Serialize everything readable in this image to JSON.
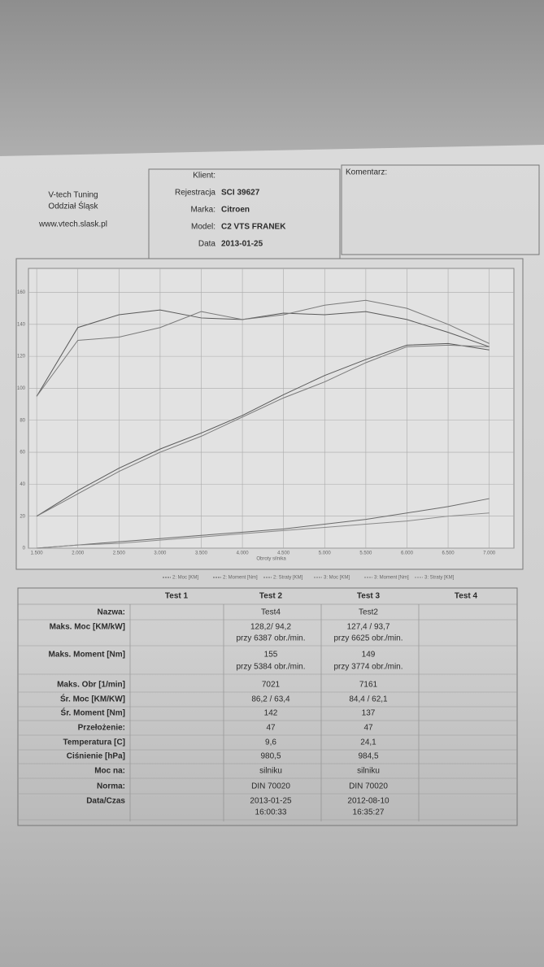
{
  "header": {
    "company": "V-tech Tuning",
    "branch": "Oddział Śląsk",
    "website": "www.vtech.slask.pl"
  },
  "client": [
    {
      "label": "Klient:"
    },
    {
      "label": "Rejestracja",
      "value": "SCI 39627"
    },
    {
      "label": "Marka:",
      "value": "Citroen"
    },
    {
      "label": "Model:",
      "value": "C2 VTS FRANEK"
    },
    {
      "label": "Data",
      "value": "2013-01-25"
    }
  ],
  "comment_label": "Komentarz:",
  "chart": {
    "type": "line",
    "x_label": "Obroty silnika",
    "x": [
      1500,
      2000,
      2500,
      3000,
      3500,
      4000,
      4500,
      5000,
      5500,
      6000,
      6500,
      7000
    ],
    "xlim": [
      1400,
      7300
    ],
    "xticks": [
      {
        "value": 1500,
        "label": "1.500"
      },
      {
        "value": 2000,
        "label": "2.000"
      },
      {
        "value": 2500,
        "label": "2.500"
      },
      {
        "value": 3000,
        "label": "3.000"
      },
      {
        "value": 3500,
        "label": "3.500"
      },
      {
        "value": 4000,
        "label": "4.000"
      },
      {
        "value": 4500,
        "label": "4.500"
      },
      {
        "value": 5000,
        "label": "5.000"
      },
      {
        "value": 5500,
        "label": "5.500"
      },
      {
        "value": 6000,
        "label": "6.000"
      },
      {
        "value": 6500,
        "label": "6.500"
      },
      {
        "value": 7000,
        "label": "7.000"
      }
    ],
    "ylim": [
      0,
      175
    ],
    "yticks": [
      0,
      20,
      40,
      60,
      80,
      100,
      120,
      140,
      160
    ],
    "grid": true,
    "series": [
      {
        "name": "2: Moc [KM]",
        "color": "#5a5a5a",
        "values": [
          20,
          36,
          50,
          62,
          72,
          83,
          96,
          108,
          118,
          127,
          128,
          124
        ]
      },
      {
        "name": "2: Moment [Nm]",
        "color": "#5a5a5a",
        "values": [
          95,
          138,
          146,
          149,
          144,
          143,
          147,
          146,
          148,
          143,
          135,
          126
        ]
      },
      {
        "name": "2: Straty [KM]",
        "color": "#6a6a6a",
        "values": [
          0,
          2,
          4,
          6,
          8,
          10,
          12,
          15,
          18,
          22,
          26,
          31
        ]
      },
      {
        "name": "3: Moc [KM]",
        "color": "#7a7a7a",
        "values": [
          20,
          34,
          48,
          60,
          70,
          82,
          94,
          104,
          116,
          126,
          127,
          126
        ]
      },
      {
        "name": "3: Moment [Nm]",
        "color": "#7a7a7a",
        "values": [
          95,
          130,
          132,
          138,
          148,
          143,
          146,
          152,
          155,
          150,
          140,
          128
        ]
      },
      {
        "name": "3: Straty [KM]",
        "color": "#8a8a8a",
        "values": [
          0,
          2,
          3,
          5,
          7,
          9,
          11,
          13,
          15,
          17,
          20,
          22
        ]
      }
    ]
  },
  "table": {
    "headers": [
      "Test 1",
      "Test 2",
      "Test 3",
      "Test 4"
    ],
    "rows": [
      {
        "label": "Nazwa:",
        "test2": [
          "Test4"
        ],
        "test3": [
          "Test2"
        ]
      },
      {
        "label": "Maks. Moc [KM/kW]",
        "test2": [
          "128,2/ 94,2",
          "przy 6387 obr./min."
        ],
        "test3": [
          "127,4 / 93,7",
          "przy 6625 obr./min."
        ]
      },
      {
        "label": "Maks. Moment [Nm]",
        "test2": [
          "155",
          "przy 5384 obr./min."
        ],
        "test3": [
          "149",
          "przy 3774 obr./min."
        ]
      },
      {
        "label": "Maks. Obr [1/min]",
        "test2": [
          "7021"
        ],
        "test3": [
          "7161"
        ]
      },
      {
        "label": "Śr. Moc [KM/KW]",
        "test2": [
          "86,2 / 63,4"
        ],
        "test3": [
          "84,4 / 62,1"
        ]
      },
      {
        "label": "Śr. Moment [Nm]",
        "test2": [
          "142"
        ],
        "test3": [
          "137"
        ]
      },
      {
        "label": "Przełożenie:",
        "test2": [
          "47"
        ],
        "test3": [
          "47"
        ]
      },
      {
        "label": "Temperatura [C]",
        "test2": [
          "9,6"
        ],
        "test3": [
          "24,1"
        ]
      },
      {
        "label": "Ciśnienie [hPa]",
        "test2": [
          "980,5"
        ],
        "test3": [
          "984,5"
        ]
      },
      {
        "label": "Moc na:",
        "test2": [
          "silniku"
        ],
        "test3": [
          "silniku"
        ]
      },
      {
        "label": "Norma:",
        "test2": [
          "DIN 70020"
        ],
        "test3": [
          "DIN 70020"
        ]
      },
      {
        "label": "Data/Czas",
        "test2": [
          "2013-01-25",
          "16:00:33"
        ],
        "test3": [
          "2012-08-10",
          "16:35:27"
        ]
      }
    ]
  }
}
